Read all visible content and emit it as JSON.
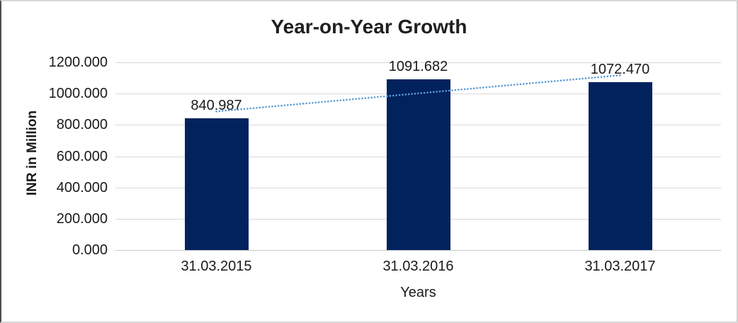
{
  "chart_data": {
    "type": "bar",
    "title": "Year-on-Year Growth",
    "xlabel": "Years",
    "ylabel": "INR in Million",
    "categories": [
      "31.03.2015",
      "31.03.2016",
      "31.03.2017"
    ],
    "values": [
      840.987,
      1091.682,
      1072.47
    ],
    "data_labels": [
      "840.987",
      "1091.682",
      "1072.470"
    ],
    "y_ticks": [
      {
        "value": 0,
        "label": "0.000"
      },
      {
        "value": 200,
        "label": "200.000"
      },
      {
        "value": 400,
        "label": "400.000"
      },
      {
        "value": 600,
        "label": "600.000"
      },
      {
        "value": 800,
        "label": "800.000"
      },
      {
        "value": 1000,
        "label": "1000.000"
      },
      {
        "value": 1200,
        "label": "1200.000"
      }
    ],
    "ylim": [
      0,
      1200
    ],
    "grid": true,
    "legend": "none",
    "trendline": {
      "type": "linear",
      "style": "dotted"
    },
    "colors": {
      "bar": "#02225E",
      "trendline": "#5B9BD5",
      "gridline": "#D9D9D9",
      "axis_text": "#1A1A1A",
      "title_text": "#1F1F1F"
    }
  }
}
